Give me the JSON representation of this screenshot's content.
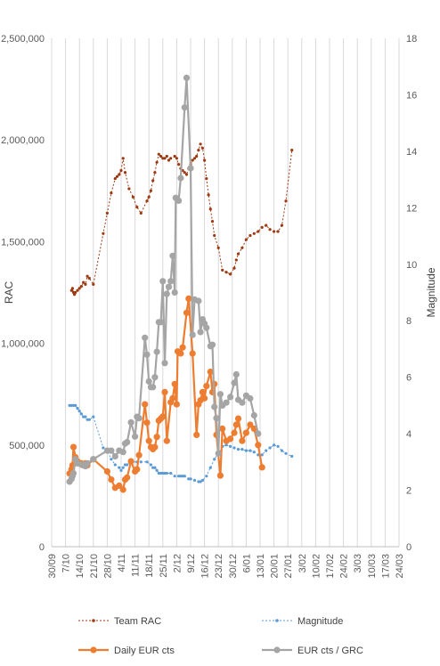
{
  "chart_data": {
    "type": "line",
    "title": "",
    "x_axis": {
      "label": "",
      "tick_labels": [
        "30/09",
        "7/10",
        "14/10",
        "21/10",
        "28/10",
        "4/11",
        "11/11",
        "18/11",
        "25/11",
        "2/12",
        "9/12",
        "16/12",
        "23/12",
        "30/12",
        "6/01",
        "13/01",
        "20/01",
        "27/01",
        "3/02",
        "10/02",
        "17/02",
        "24/02",
        "3/03",
        "10/03",
        "17/03",
        "24/03"
      ],
      "range_days": [
        0,
        175
      ]
    },
    "y_left": {
      "label": "RAC",
      "range": [
        0,
        2500000
      ],
      "tick_labels": [
        "0",
        "500,000",
        "1,000,000",
        "1,500,000",
        "2,000,000",
        "2,500,000"
      ]
    },
    "y_right": {
      "label": "Magnitude",
      "range": [
        0,
        18
      ],
      "tick_labels": [
        "0",
        "2",
        "4",
        "6",
        "8",
        "10",
        "12",
        "14",
        "16",
        "18"
      ]
    },
    "grid": "vertical",
    "legend_position": "bottom",
    "series": [
      {
        "name": "Team RAC",
        "axis": "left",
        "color": "#9e3a12",
        "style": "dotted-marker",
        "points": [
          [
            10,
            1260000
          ],
          [
            10.5,
            1270000
          ],
          [
            11,
            1250000
          ],
          [
            11.5,
            1240000
          ],
          [
            12,
            1250000
          ],
          [
            13,
            1260000
          ],
          [
            14,
            1270000
          ],
          [
            15,
            1280000
          ],
          [
            16,
            1300000
          ],
          [
            17,
            1290000
          ],
          [
            18,
            1330000
          ],
          [
            19,
            1320000
          ],
          [
            21,
            1290000
          ],
          [
            26,
            1540000
          ],
          [
            28,
            1640000
          ],
          [
            30,
            1740000
          ],
          [
            32,
            1810000
          ],
          [
            33,
            1820000
          ],
          [
            34,
            1830000
          ],
          [
            35,
            1850000
          ],
          [
            36,
            1910000
          ],
          [
            37,
            1840000
          ],
          [
            39,
            1760000
          ],
          [
            41,
            1720000
          ],
          [
            43,
            1670000
          ],
          [
            45,
            1640000
          ],
          [
            48,
            1700000
          ],
          [
            49,
            1720000
          ],
          [
            50,
            1750000
          ],
          [
            51,
            1800000
          ],
          [
            52,
            1840000
          ],
          [
            53,
            1890000
          ],
          [
            54,
            1930000
          ],
          [
            55,
            1920000
          ],
          [
            56,
            1910000
          ],
          [
            57,
            1910000
          ],
          [
            58,
            1920000
          ],
          [
            59,
            1900000
          ],
          [
            60,
            1910000
          ],
          [
            62,
            1920000
          ],
          [
            63,
            1910000
          ],
          [
            64,
            1880000
          ],
          [
            65,
            1860000
          ],
          [
            66,
            1850000
          ],
          [
            67,
            1840000
          ],
          [
            68,
            1830000
          ],
          [
            69,
            1860000
          ],
          [
            70,
            1880000
          ],
          [
            71,
            1900000
          ],
          [
            72,
            1910000
          ],
          [
            73,
            1920000
          ],
          [
            74,
            1950000
          ],
          [
            75,
            1980000
          ],
          [
            76,
            1960000
          ],
          [
            77,
            1900000
          ],
          [
            78,
            1810000
          ],
          [
            79,
            1730000
          ],
          [
            80,
            1660000
          ],
          [
            81,
            1600000
          ],
          [
            82,
            1530000
          ],
          [
            84,
            1470000
          ],
          [
            86,
            1360000
          ],
          [
            88,
            1350000
          ],
          [
            90,
            1340000
          ],
          [
            92,
            1370000
          ],
          [
            93,
            1410000
          ],
          [
            94,
            1440000
          ],
          [
            96,
            1470000
          ],
          [
            98,
            1510000
          ],
          [
            100,
            1530000
          ],
          [
            102,
            1540000
          ],
          [
            104,
            1550000
          ],
          [
            106,
            1570000
          ],
          [
            108,
            1580000
          ],
          [
            110,
            1560000
          ],
          [
            112,
            1550000
          ],
          [
            114,
            1550000
          ],
          [
            116,
            1580000
          ],
          [
            118,
            1700000
          ],
          [
            121,
            1950000
          ]
        ]
      },
      {
        "name": "Magnitude",
        "axis": "right",
        "color": "#5b9bd5",
        "style": "dotted-marker",
        "points": [
          [
            9,
            5.0
          ],
          [
            10,
            5.0
          ],
          [
            11,
            5.0
          ],
          [
            12,
            5.0
          ],
          [
            13,
            4.9
          ],
          [
            14,
            4.8
          ],
          [
            15,
            4.7
          ],
          [
            16,
            4.6
          ],
          [
            17,
            4.6
          ],
          [
            18,
            4.5
          ],
          [
            19,
            4.5
          ],
          [
            21,
            4.6
          ],
          [
            26,
            3.5
          ],
          [
            28,
            3.4
          ],
          [
            30,
            3.1
          ],
          [
            32,
            2.9
          ],
          [
            34,
            2.8
          ],
          [
            35,
            2.7
          ],
          [
            36,
            2.8
          ],
          [
            37,
            2.9
          ],
          [
            38,
            2.9
          ],
          [
            40,
            3.0
          ],
          [
            43,
            3.0
          ],
          [
            45,
            3.0
          ],
          [
            48,
            3.0
          ],
          [
            50,
            2.9
          ],
          [
            51,
            2.8
          ],
          [
            52,
            2.8
          ],
          [
            53,
            2.7
          ],
          [
            54,
            2.6
          ],
          [
            55,
            2.6
          ],
          [
            56,
            2.6
          ],
          [
            57,
            2.6
          ],
          [
            58,
            2.6
          ],
          [
            60,
            2.6
          ],
          [
            62,
            2.5
          ],
          [
            64,
            2.5
          ],
          [
            65,
            2.5
          ],
          [
            66,
            2.5
          ],
          [
            67,
            2.5
          ],
          [
            69,
            2.4
          ],
          [
            70,
            2.4
          ],
          [
            72,
            2.35
          ],
          [
            74,
            2.3
          ],
          [
            75,
            2.3
          ],
          [
            76,
            2.35
          ],
          [
            78,
            2.5
          ],
          [
            80,
            2.8
          ],
          [
            82,
            3.1
          ],
          [
            84,
            3.3
          ],
          [
            86,
            3.55
          ],
          [
            88,
            3.6
          ],
          [
            90,
            3.55
          ],
          [
            92,
            3.5
          ],
          [
            94,
            3.45
          ],
          [
            96,
            3.45
          ],
          [
            98,
            3.4
          ],
          [
            100,
            3.4
          ],
          [
            102,
            3.35
          ],
          [
            104,
            3.25
          ],
          [
            106,
            3.25
          ],
          [
            108,
            3.4
          ],
          [
            110,
            3.5
          ],
          [
            112,
            3.6
          ],
          [
            114,
            3.55
          ],
          [
            116,
            3.4
          ],
          [
            118,
            3.3
          ],
          [
            121,
            3.2
          ]
        ]
      },
      {
        "name": "Daily EUR cts",
        "axis": "left",
        "color": "#ed7d31",
        "style": "solid-marker",
        "points": [
          [
            9,
            360000
          ],
          [
            10,
            380000
          ],
          [
            10.5,
            400000
          ],
          [
            11,
            490000
          ],
          [
            12,
            440000
          ],
          [
            13,
            420000
          ],
          [
            15,
            410000
          ],
          [
            16,
            400000
          ],
          [
            17,
            410000
          ],
          [
            18,
            400000
          ],
          [
            21,
            430000
          ],
          [
            28,
            370000
          ],
          [
            30,
            330000
          ],
          [
            32,
            290000
          ],
          [
            34,
            300000
          ],
          [
            36,
            280000
          ],
          [
            37,
            330000
          ],
          [
            38,
            340000
          ],
          [
            40,
            420000
          ],
          [
            42,
            370000
          ],
          [
            43,
            380000
          ],
          [
            44,
            450000
          ],
          [
            47,
            700000
          ],
          [
            48,
            610000
          ],
          [
            49,
            520000
          ],
          [
            50,
            490000
          ],
          [
            51,
            480000
          ],
          [
            52,
            490000
          ],
          [
            53,
            540000
          ],
          [
            54,
            620000
          ],
          [
            55,
            630000
          ],
          [
            56,
            640000
          ],
          [
            57,
            760000
          ],
          [
            58,
            520000
          ],
          [
            60,
            710000
          ],
          [
            61,
            730000
          ],
          [
            62,
            800000
          ],
          [
            63,
            700000
          ],
          [
            63.5,
            960000
          ],
          [
            65,
            950000
          ],
          [
            66,
            980000
          ],
          [
            68,
            1150000
          ],
          [
            69,
            1220000
          ],
          [
            71,
            950000
          ],
          [
            73,
            550000
          ],
          [
            74,
            700000
          ],
          [
            75,
            720000
          ],
          [
            76,
            760000
          ],
          [
            77,
            730000
          ],
          [
            78,
            790000
          ],
          [
            80,
            860000
          ],
          [
            81,
            760000
          ],
          [
            82,
            800000
          ],
          [
            83,
            550000
          ],
          [
            85,
            350000
          ],
          [
            86,
            580000
          ],
          [
            88,
            520000
          ],
          [
            90,
            530000
          ],
          [
            92,
            560000
          ],
          [
            93,
            600000
          ],
          [
            94,
            630000
          ],
          [
            96,
            520000
          ],
          [
            98,
            560000
          ],
          [
            100,
            600000
          ],
          [
            102,
            580000
          ],
          [
            104,
            500000
          ],
          [
            106,
            390000
          ]
        ]
      },
      {
        "name": "EUR cts / GRC",
        "axis": "right",
        "color": "#a5a5a5",
        "style": "solid-marker",
        "points": [
          [
            9,
            2.3
          ],
          [
            10,
            2.4
          ],
          [
            10.5,
            2.5
          ],
          [
            11,
            2.6
          ],
          [
            12,
            3.1
          ],
          [
            13,
            2.95
          ],
          [
            15,
            2.9
          ],
          [
            16,
            2.9
          ],
          [
            17,
            2.85
          ],
          [
            18,
            2.95
          ],
          [
            21,
            3.1
          ],
          [
            28,
            3.4
          ],
          [
            30,
            3.4
          ],
          [
            32,
            3.2
          ],
          [
            34,
            3.4
          ],
          [
            36,
            3.35
          ],
          [
            37,
            3.65
          ],
          [
            38,
            3.7
          ],
          [
            40,
            4.4
          ],
          [
            42,
            3.9
          ],
          [
            43,
            4.6
          ],
          [
            44,
            4.55
          ],
          [
            47,
            7.4
          ],
          [
            48,
            6.8
          ],
          [
            49,
            5.85
          ],
          [
            50,
            5.65
          ],
          [
            51,
            5.65
          ],
          [
            52,
            6.0
          ],
          [
            53,
            6.9
          ],
          [
            54,
            7.95
          ],
          [
            55,
            7.95
          ],
          [
            56,
            9.4
          ],
          [
            57,
            6.5
          ],
          [
            58,
            8.95
          ],
          [
            59,
            9.2
          ],
          [
            60,
            9.4
          ],
          [
            61,
            10.3
          ],
          [
            62,
            9.0
          ],
          [
            62.5,
            12.35
          ],
          [
            64,
            12.25
          ],
          [
            65,
            13.05
          ],
          [
            67,
            15.55
          ],
          [
            68,
            16.6
          ],
          [
            70,
            13.4
          ],
          [
            71,
            7.5
          ],
          [
            72,
            8.75
          ],
          [
            74,
            8.7
          ],
          [
            75,
            7.6
          ],
          [
            76,
            8.05
          ],
          [
            77,
            7.9
          ],
          [
            78,
            7.75
          ],
          [
            80,
            7.1
          ],
          [
            81,
            7.15
          ],
          [
            82,
            4.95
          ],
          [
            83,
            4.55
          ],
          [
            84,
            3.3
          ],
          [
            85,
            5.4
          ],
          [
            86,
            5.0
          ],
          [
            88,
            5.1
          ],
          [
            90,
            5.3
          ],
          [
            92,
            5.8
          ],
          [
            93,
            6.1
          ],
          [
            94,
            5.2
          ],
          [
            96,
            5.1
          ],
          [
            98,
            5.35
          ],
          [
            100,
            5.25
          ],
          [
            102,
            4.65
          ],
          [
            104,
            4.0
          ]
        ]
      }
    ]
  }
}
